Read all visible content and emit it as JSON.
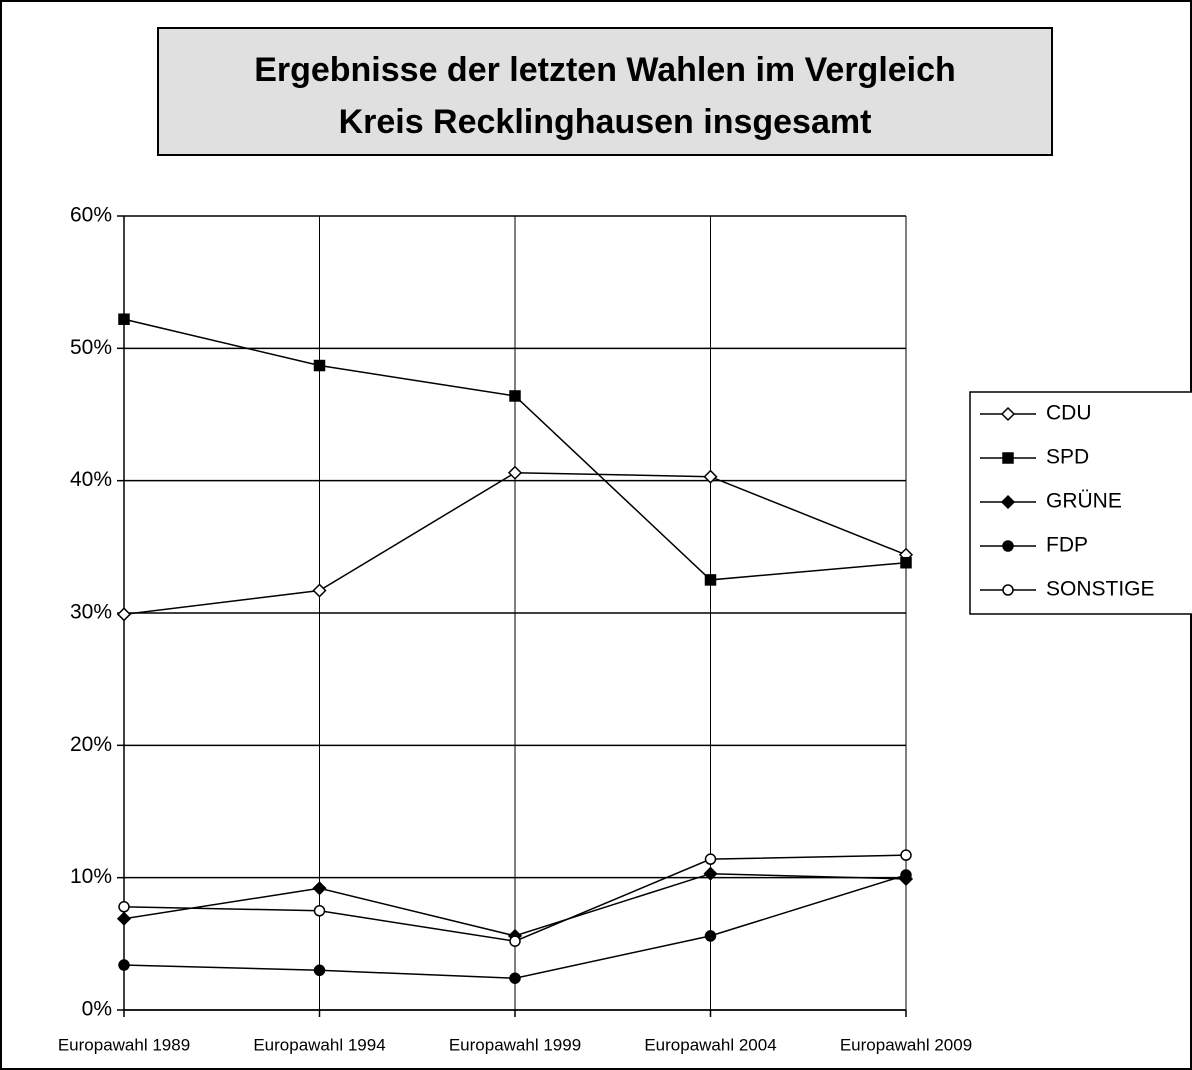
{
  "chart_data": {
    "type": "line",
    "title": "Ergebnisse der letzten Wahlen im Vergleich",
    "subtitle": "Kreis Recklinghausen insgesamt",
    "categories": [
      "Europawahl 1989",
      "Europawahl 1994",
      "Europawahl 1999",
      "Europawahl 2004",
      "Europawahl 2009"
    ],
    "series": [
      {
        "name": "CDU",
        "color": "#000000",
        "marker": "diamond-open",
        "values": [
          29.9,
          31.7,
          40.6,
          40.3,
          34.4
        ]
      },
      {
        "name": "SPD",
        "color": "#000000",
        "marker": "square",
        "values": [
          52.2,
          48.7,
          46.4,
          32.5,
          33.8
        ]
      },
      {
        "name": "GRÜNE",
        "color": "#000000",
        "marker": "diamond",
        "values": [
          6.9,
          9.2,
          5.6,
          10.3,
          9.9
        ]
      },
      {
        "name": "FDP",
        "color": "#000000",
        "marker": "circle",
        "values": [
          3.4,
          3.0,
          2.4,
          5.6,
          10.2
        ]
      },
      {
        "name": "SONSTIGE",
        "color": "#000000",
        "marker": "circle-open",
        "values": [
          7.8,
          7.5,
          5.2,
          11.4,
          11.7
        ]
      }
    ],
    "ylim": [
      0,
      60
    ],
    "yticks": [
      {
        "value": 0,
        "label": "0%"
      },
      {
        "value": 10,
        "label": "10%"
      },
      {
        "value": 20,
        "label": "20%"
      },
      {
        "value": 30,
        "label": "30%"
      },
      {
        "value": 40,
        "label": "40%"
      },
      {
        "value": 50,
        "label": "50%"
      },
      {
        "value": 60,
        "label": "60%"
      }
    ],
    "grid": true,
    "legend": "right"
  }
}
